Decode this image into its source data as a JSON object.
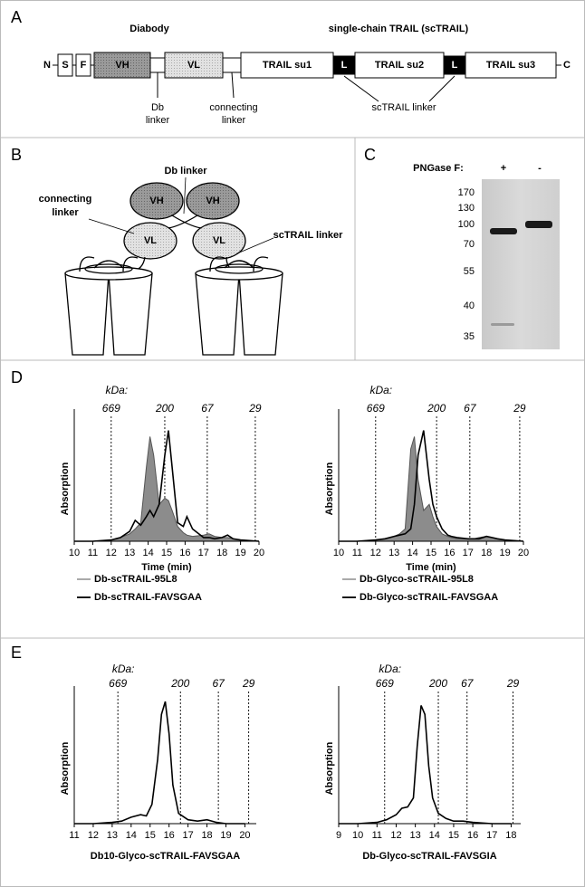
{
  "panel_labels": [
    "A",
    "B",
    "C",
    "D",
    "E"
  ],
  "a": {
    "diabody": "Diabody",
    "sctrail": "single-chain TRAIL (scTRAIL)",
    "n": "N",
    "c": "C",
    "domains": [
      "S",
      "F",
      "VH",
      "VL",
      "TRAIL su1",
      "L",
      "TRAIL su2",
      "L",
      "TRAIL su3"
    ],
    "db_linker": [
      "Db",
      "linker"
    ],
    "connecting_linker": [
      "connecting",
      "linker"
    ],
    "sctrail_linker": "scTRAIL linker"
  },
  "b": {
    "db_linker": "Db linker",
    "connecting_linker": [
      "connecting",
      "linker"
    ],
    "sctrail_linker": "scTRAIL linker",
    "domains": [
      "VH",
      "VH",
      "VL",
      "VL"
    ]
  },
  "c": {
    "pngase": "PNGase F:",
    "lanes": [
      "+",
      "-"
    ],
    "ladder": [
      170,
      130,
      100,
      70,
      55,
      40,
      35
    ]
  },
  "d": {
    "kda": "kDa:",
    "charts": [
      {
        "xlim": [
          10,
          20
        ],
        "xticks": [
          10,
          11,
          12,
          13,
          14,
          15,
          16,
          17,
          18,
          19,
          20
        ],
        "ylim": [
          0,
          1
        ],
        "ylabel": "Absorption",
        "xlabel": "Time (min)",
        "markers": [
          {
            "value": 12.0,
            "label": "669"
          },
          {
            "value": 14.9,
            "label": "200"
          },
          {
            "value": 17.2,
            "label": "67"
          },
          {
            "value": 19.8,
            "label": "29"
          }
        ],
        "x": [
          10,
          11,
          12,
          12.5,
          13,
          13.3,
          13.6,
          13.9,
          14.1,
          14.3,
          14.6,
          14.9,
          15.1,
          15.3,
          15.6,
          15.9,
          16.1,
          16.4,
          17,
          17.3,
          17.6,
          18,
          18.3,
          18.6,
          19,
          20
        ],
        "series": [
          {
            "name": "Db-scTRAIL-95L8",
            "color": "#555555",
            "fill": "#8c8c8c",
            "values": [
              0,
              0,
              0.01,
              0.03,
              0.06,
              0.1,
              0.15,
              0.6,
              0.85,
              0.7,
              0.3,
              0.35,
              0.33,
              0.25,
              0.12,
              0.07,
              0.05,
              0.04,
              0.05,
              0.06,
              0.04,
              0.03,
              0.03,
              0.02,
              0.01,
              0
            ]
          },
          {
            "name": "Db-scTRAIL-FAVSGAA",
            "color": "#000000",
            "values": [
              0,
              0,
              0.01,
              0.03,
              0.08,
              0.17,
              0.13,
              0.2,
              0.25,
              0.2,
              0.3,
              0.7,
              0.9,
              0.6,
              0.15,
              0.12,
              0.2,
              0.1,
              0.03,
              0.03,
              0.02,
              0.03,
              0.05,
              0.02,
              0.01,
              0
            ]
          }
        ]
      },
      {
        "xlim": [
          10,
          20
        ],
        "xticks": [
          10,
          11,
          12,
          13,
          14,
          15,
          16,
          17,
          18,
          19,
          20
        ],
        "ylim": [
          0,
          1
        ],
        "ylabel": "Absorption",
        "xlabel": "Time (min)",
        "markers": [
          {
            "value": 12.0,
            "label": "669"
          },
          {
            "value": 15.3,
            "label": "200"
          },
          {
            "value": 17.1,
            "label": "67"
          },
          {
            "value": 19.8,
            "label": "29"
          }
        ],
        "x": [
          10,
          11,
          12,
          12.5,
          13,
          13.3,
          13.6,
          13.9,
          14.1,
          14.3,
          14.6,
          14.9,
          15.1,
          15.3,
          15.6,
          15.9,
          16.1,
          16.4,
          17,
          17.3,
          17.6,
          18,
          18.3,
          18.6,
          19,
          20
        ],
        "series": [
          {
            "name": "Db-Glyco-scTRAIL-95L8",
            "color": "#555555",
            "fill": "#8c8c8c",
            "values": [
              0,
              0,
              0.01,
              0.02,
              0.04,
              0.06,
              0.1,
              0.75,
              0.85,
              0.5,
              0.25,
              0.3,
              0.2,
              0.12,
              0.06,
              0.04,
              0.03,
              0.02,
              0.02,
              0.02,
              0.03,
              0.04,
              0.03,
              0.02,
              0.01,
              0
            ]
          },
          {
            "name": "Db-Glyco-scTRAIL-FAVSGAA",
            "color": "#000000",
            "values": [
              0,
              0,
              0.01,
              0.02,
              0.04,
              0.05,
              0.06,
              0.1,
              0.3,
              0.7,
              0.9,
              0.5,
              0.3,
              0.2,
              0.1,
              0.05,
              0.04,
              0.03,
              0.02,
              0.02,
              0.02,
              0.04,
              0.03,
              0.02,
              0.01,
              0
            ]
          }
        ]
      }
    ]
  },
  "e": {
    "kda": "kDa:",
    "charts": [
      {
        "xlim": [
          11,
          20.6
        ],
        "xticks": [
          11,
          12,
          13,
          14,
          15,
          16,
          17,
          18,
          19,
          20
        ],
        "ylim": [
          0,
          1
        ],
        "ylabel": "Absorption",
        "caption": "Db10-Glyco-scTRAIL-FAVSGAA",
        "markers": [
          {
            "value": 13.3,
            "label": "669"
          },
          {
            "value": 16.6,
            "label": "200"
          },
          {
            "value": 18.6,
            "label": "67"
          },
          {
            "value": 20.2,
            "label": "29"
          }
        ],
        "x": [
          11,
          12,
          13,
          13.5,
          14,
          14.5,
          14.8,
          15.1,
          15.4,
          15.6,
          15.8,
          16,
          16.2,
          16.5,
          17,
          17.5,
          18,
          18.5,
          19,
          20
        ],
        "series": [
          {
            "color": "#000000",
            "values": [
              0,
              0,
              0.01,
              0.02,
              0.05,
              0.07,
              0.06,
              0.15,
              0.5,
              0.85,
              0.95,
              0.7,
              0.3,
              0.08,
              0.03,
              0.02,
              0.03,
              0.01,
              0,
              0
            ]
          }
        ]
      },
      {
        "xlim": [
          9,
          18.5
        ],
        "xticks": [
          9,
          10,
          11,
          12,
          13,
          14,
          15,
          16,
          17,
          18
        ],
        "ylim": [
          0,
          1
        ],
        "ylabel": "Absorption",
        "caption": "Db-Glyco-scTRAIL-FAVSGIA",
        "markers": [
          {
            "value": 11.4,
            "label": "669"
          },
          {
            "value": 14.2,
            "label": "200"
          },
          {
            "value": 15.7,
            "label": "67"
          },
          {
            "value": 18.1,
            "label": "29"
          }
        ],
        "x": [
          9,
          10,
          11,
          11.5,
          12,
          12.3,
          12.6,
          12.9,
          13.1,
          13.3,
          13.5,
          13.7,
          13.9,
          14.2,
          14.6,
          15,
          15.5,
          16,
          17,
          18
        ],
        "series": [
          {
            "color": "#000000",
            "values": [
              0,
              0,
              0.01,
              0.03,
              0.07,
              0.12,
              0.13,
              0.2,
              0.6,
              0.92,
              0.85,
              0.45,
              0.2,
              0.08,
              0.04,
              0.02,
              0.02,
              0.01,
              0,
              0
            ]
          }
        ]
      }
    ]
  }
}
